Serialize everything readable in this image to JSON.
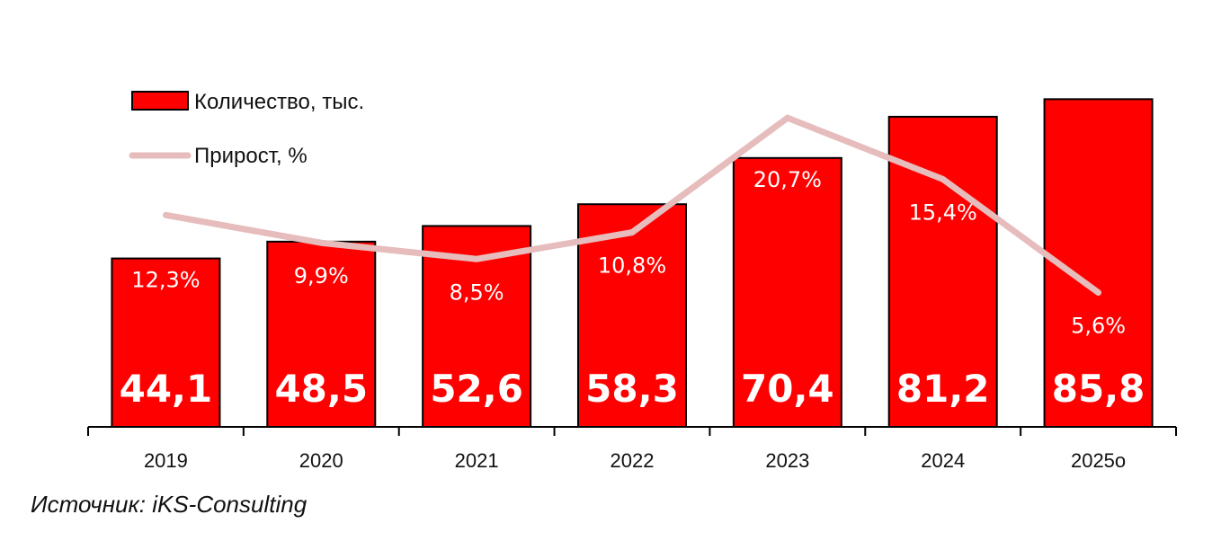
{
  "chart_data": {
    "type": "bar",
    "categories": [
      "2019",
      "2020",
      "2021",
      "2022",
      "2023",
      "2024",
      "2025о"
    ],
    "series": [
      {
        "name": "Количество, тыс.",
        "kind": "bar",
        "color": "#FF0000",
        "values": [
          44.1,
          48.5,
          52.6,
          58.3,
          70.4,
          81.2,
          85.8
        ],
        "labels": [
          "44,1",
          "48,5",
          "52,6",
          "58,3",
          "70,4",
          "81,2",
          "85,8"
        ]
      },
      {
        "name": "Прирост, %",
        "kind": "line",
        "color": "#E6BCBC",
        "values": [
          12.3,
          9.9,
          8.5,
          10.8,
          20.7,
          15.4,
          5.6
        ],
        "labels": [
          "12,3%",
          "9,9%",
          "8,5%",
          "10,8%",
          "20,7%",
          "15,4%",
          "5,6%"
        ]
      }
    ],
    "legend": {
      "position": "top-left",
      "items": [
        {
          "label": "Количество, тыс.",
          "color": "#FF0000",
          "marker": "bar"
        },
        {
          "label": "Прирост, %",
          "color": "#E6BCBC",
          "marker": "line"
        }
      ]
    },
    "ylim": [
      0,
      100
    ],
    "y2lim": [
      -6,
      27
    ],
    "grid": false
  },
  "source": "Источник: iKS-Consulting"
}
